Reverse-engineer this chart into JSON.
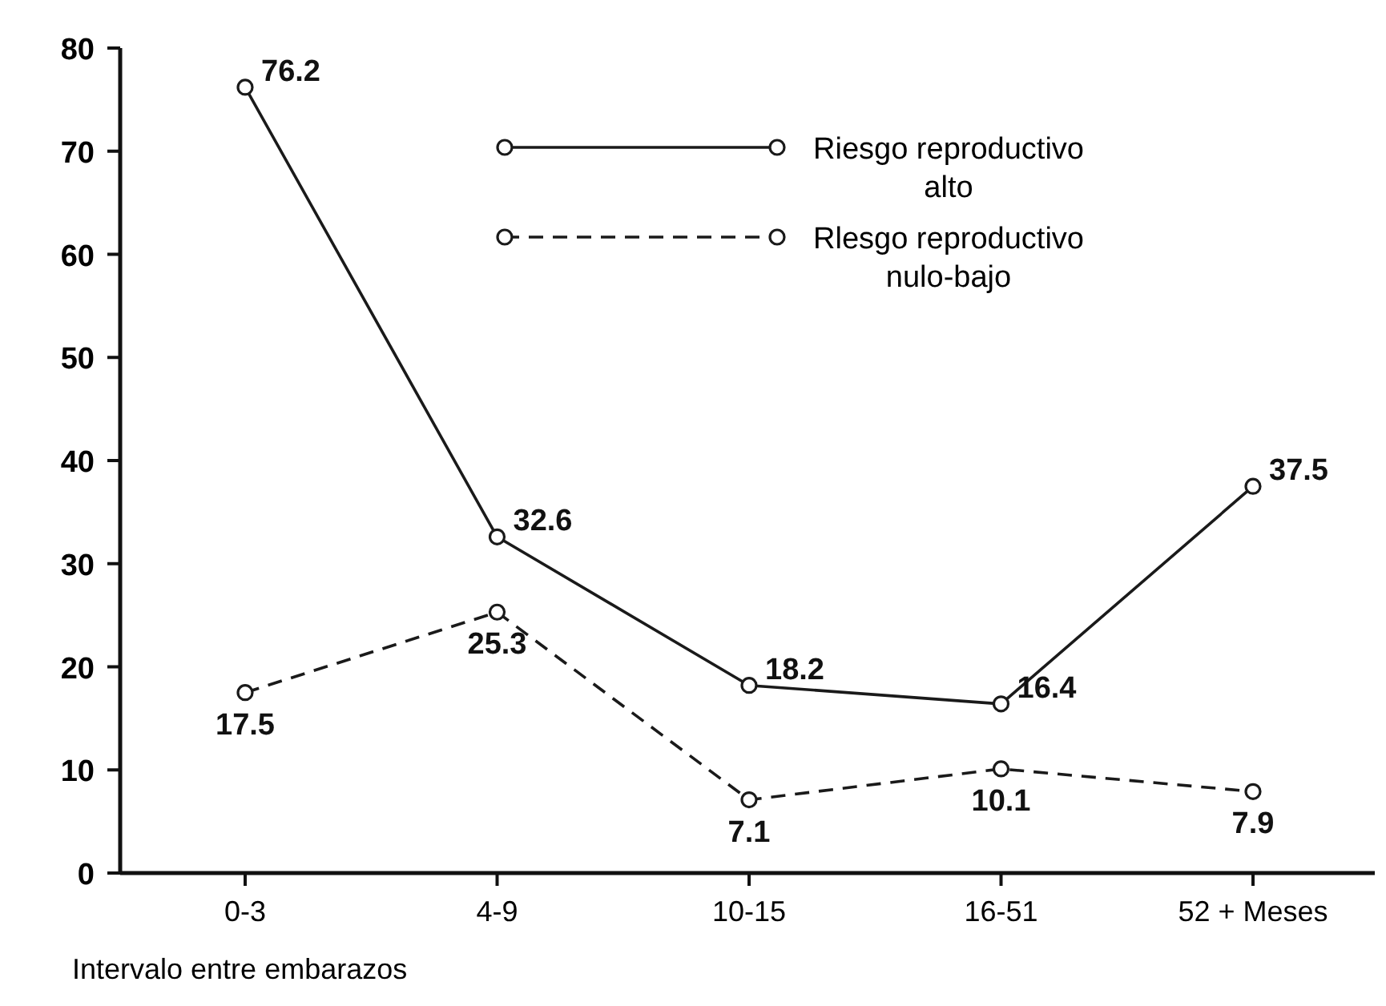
{
  "chart_data": {
    "type": "line",
    "categories": [
      "0-3",
      "4-9",
      "10-15",
      "16-51",
      "52 + Meses"
    ],
    "xlabel": "Intervalo entre embarazos",
    "series": [
      {
        "name": "Riesgo reproductivo alto",
        "color": "#1a1a1a",
        "values": [
          76.2,
          32.6,
          18.2,
          16.4,
          37.5
        ],
        "line_style": "solid"
      },
      {
        "name": "Rlesgo reproductivo nulo-bajo",
        "color": "#1a1a1a",
        "values": [
          17.5,
          25.3,
          7.1,
          10.1,
          7.9
        ],
        "line_style": "dashed"
      }
    ],
    "ylim": [
      0,
      80
    ],
    "yticks": [
      0,
      10,
      20,
      30,
      40,
      50,
      60,
      70,
      80
    ],
    "data_labels": true,
    "marker": "circle",
    "legend": "top right",
    "grid": false
  }
}
